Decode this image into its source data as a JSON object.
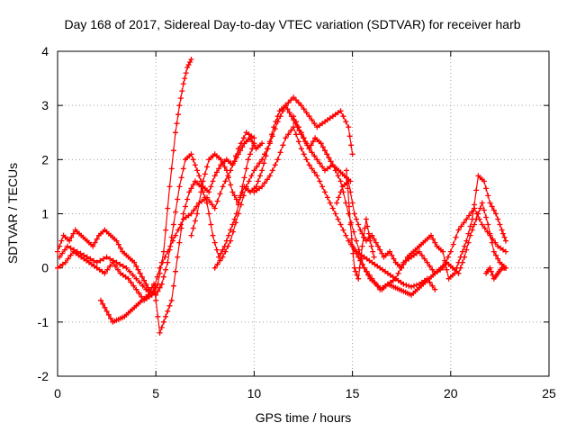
{
  "chart_data": {
    "type": "scatter",
    "title": "Day 168 of 2017, Sidereal Day-to-day VTEC variation (SDTVAR) for receiver harb",
    "xlabel": "GPS time / hours",
    "ylabel": "SDTVAR / TECUs",
    "xlim": [
      0,
      25
    ],
    "ylim": [
      -2,
      4
    ],
    "xticks": [
      0,
      5,
      10,
      15,
      20,
      25
    ],
    "yticks": [
      -2,
      -1,
      0,
      1,
      2,
      3,
      4
    ],
    "grid": true,
    "marker": "+",
    "series": [
      {
        "name": "trace-1",
        "color": "#ff0000",
        "x": [
          0.0,
          0.3,
          0.6,
          0.9,
          1.2,
          1.5,
          1.8,
          2.1,
          2.4,
          2.7,
          3.0,
          3.3,
          3.6,
          3.9,
          4.2,
          4.5,
          4.8,
          5.1,
          5.4,
          5.7,
          6.0,
          6.2,
          6.4,
          6.6,
          6.8
        ],
        "y": [
          0.3,
          0.6,
          0.5,
          0.7,
          0.6,
          0.5,
          0.4,
          0.6,
          0.7,
          0.6,
          0.5,
          0.3,
          0.2,
          0.1,
          -0.1,
          -0.3,
          -0.5,
          -0.3,
          0.3,
          1.5,
          2.5,
          3.0,
          3.4,
          3.7,
          3.85
        ]
      },
      {
        "name": "trace-2",
        "color": "#ff0000",
        "x": [
          0.1,
          0.5,
          1.0,
          1.5,
          2.0,
          2.5,
          3.0,
          3.5,
          4.0,
          4.5,
          5.0,
          5.3,
          5.6,
          5.9,
          6.2,
          6.5,
          6.8,
          7.1,
          7.4,
          7.7,
          8.0,
          8.3,
          8.6,
          8.9,
          9.2,
          9.5,
          9.8,
          10.1,
          10.4
        ],
        "y": [
          0.2,
          0.4,
          0.3,
          0.2,
          0.1,
          0.2,
          0.1,
          0.0,
          -0.2,
          -0.4,
          -0.5,
          -0.3,
          0.1,
          0.8,
          1.5,
          2.0,
          2.1,
          1.8,
          1.5,
          1.4,
          1.7,
          1.9,
          2.0,
          1.9,
          2.1,
          2.3,
          2.4,
          2.2,
          2.3
        ]
      },
      {
        "name": "trace-3",
        "color": "#ff0000",
        "x": [
          0.0,
          0.4,
          0.8,
          1.2,
          1.6,
          2.0,
          2.4,
          2.8,
          3.2,
          3.6,
          4.0,
          4.4,
          4.8,
          5.2,
          5.6,
          6.0,
          6.4,
          6.8,
          7.2,
          7.6,
          8.0,
          8.4,
          8.8,
          9.2,
          9.6,
          10.0
        ],
        "y": [
          0.0,
          0.1,
          0.3,
          0.2,
          0.1,
          0.0,
          -0.1,
          0.1,
          -0.1,
          -0.2,
          -0.4,
          -0.6,
          -0.5,
          0.0,
          0.3,
          0.6,
          0.9,
          1.0,
          1.2,
          1.3,
          1.1,
          1.5,
          1.8,
          2.2,
          2.5,
          2.4
        ]
      },
      {
        "name": "trace-4",
        "color": "#ff0000",
        "x": [
          2.2,
          2.5,
          2.8,
          3.1,
          3.4,
          3.7,
          4.0,
          4.3,
          4.6,
          4.9,
          5.2,
          5.5,
          5.8,
          6.1,
          6.4,
          6.7,
          7.0,
          7.3,
          7.6,
          7.9,
          8.2,
          8.5,
          8.8,
          9.1,
          9.4,
          9.7,
          10.0
        ],
        "y": [
          -0.6,
          -0.8,
          -1.0,
          -0.95,
          -0.9,
          -0.8,
          -0.7,
          -0.6,
          -0.5,
          -0.3,
          -1.2,
          -0.9,
          -0.6,
          0.2,
          1.0,
          1.4,
          1.6,
          1.5,
          1.2,
          0.6,
          0.2,
          0.4,
          0.7,
          1.0,
          1.5,
          2.0,
          2.3
        ]
      },
      {
        "name": "trace-5",
        "color": "#ff0000",
        "x": [
          6.8,
          7.1,
          7.4,
          7.7,
          8.0,
          8.3,
          8.6,
          8.9,
          9.2,
          9.5,
          9.8,
          10.1,
          10.4,
          10.7,
          11.0,
          11.3,
          11.6,
          11.9,
          12.2,
          12.5,
          12.8,
          13.1,
          13.4,
          13.7,
          14.0,
          14.3,
          14.6,
          14.9
        ],
        "y": [
          0.6,
          1.0,
          1.6,
          2.0,
          2.1,
          2.0,
          1.8,
          1.4,
          1.2,
          1.5,
          1.4,
          1.5,
          1.8,
          2.2,
          2.6,
          2.9,
          3.0,
          2.8,
          2.6,
          2.4,
          2.2,
          2.4,
          2.3,
          2.1,
          1.9,
          1.8,
          1.7,
          1.6
        ]
      },
      {
        "name": "trace-6",
        "color": "#ff0000",
        "x": [
          8.0,
          8.4,
          8.8,
          9.2,
          9.6,
          10.0,
          10.4,
          10.8,
          11.2,
          11.6,
          12.0,
          12.4,
          12.8,
          13.2,
          13.6,
          14.0,
          14.4,
          14.8,
          15.0
        ],
        "y": [
          0.0,
          0.2,
          0.5,
          1.0,
          1.5,
          1.8,
          2.0,
          2.3,
          2.7,
          3.0,
          3.15,
          3.0,
          2.8,
          2.6,
          2.7,
          2.8,
          2.9,
          2.6,
          2.1
        ]
      },
      {
        "name": "trace-7",
        "color": "#ff0000",
        "x": [
          10.0,
          10.4,
          10.8,
          11.2,
          11.6,
          12.0,
          12.4,
          12.8,
          13.2,
          13.6,
          14.0,
          14.4,
          14.8,
          15.2,
          15.6,
          16.0,
          16.4,
          16.8,
          17.2,
          17.6,
          18.0,
          18.4,
          18.8,
          19.2
        ],
        "y": [
          1.4,
          1.5,
          1.7,
          2.0,
          2.4,
          2.6,
          2.2,
          1.9,
          1.7,
          1.4,
          1.1,
          0.8,
          0.5,
          0.3,
          0.2,
          0.1,
          0.0,
          -0.1,
          -0.2,
          -0.3,
          -0.35,
          -0.3,
          -0.2,
          -0.4
        ]
      },
      {
        "name": "trace-8",
        "color": "#ff0000",
        "x": [
          12.0,
          12.4,
          12.8,
          13.2,
          13.6,
          14.0,
          14.4,
          14.8,
          15.2,
          15.6,
          16.0,
          16.4,
          16.8,
          17.2,
          17.6,
          18.0,
          18.4,
          18.8,
          19.2,
          19.6,
          20.0,
          20.4,
          20.8,
          21.2,
          21.6,
          22.0,
          22.4,
          22.8
        ],
        "y": [
          2.8,
          2.5,
          2.2,
          2.0,
          1.8,
          1.9,
          1.6,
          1.0,
          0.5,
          0.0,
          -0.2,
          -0.4,
          -0.3,
          -0.2,
          0.1,
          0.2,
          0.3,
          0.1,
          -0.1,
          0.0,
          0.3,
          0.7,
          0.9,
          1.1,
          0.8,
          0.6,
          0.4,
          0.3
        ]
      },
      {
        "name": "trace-9",
        "color": "#ff0000",
        "x": [
          14.2,
          14.5,
          14.8,
          15.1,
          15.4,
          15.7,
          16.0,
          16.3,
          16.6,
          16.9,
          17.2,
          17.5,
          17.8,
          18.1,
          18.4,
          18.7,
          19.0,
          19.3,
          19.6,
          19.9,
          20.2,
          20.5,
          20.8,
          21.1,
          21.4,
          21.7,
          22.0,
          22.3,
          22.6,
          22.8
        ],
        "y": [
          1.2,
          1.5,
          1.6,
          1.0,
          0.7,
          0.5,
          0.6,
          0.4,
          0.2,
          0.3,
          0.1,
          0.0,
          0.2,
          0.3,
          0.4,
          0.5,
          0.6,
          0.4,
          0.3,
          -0.2,
          -0.1,
          0.2,
          0.5,
          0.9,
          1.7,
          1.6,
          1.2,
          1.0,
          0.7,
          0.5
        ]
      },
      {
        "name": "trace-10",
        "color": "#ff0000",
        "x": [
          15.0,
          15.3,
          15.6,
          15.9,
          16.2,
          16.5,
          16.8,
          17.1,
          17.4,
          17.7,
          18.0,
          18.3,
          18.6,
          18.9,
          19.2,
          19.5,
          19.8,
          20.1,
          20.4,
          20.7,
          21.0,
          21.3,
          21.6,
          21.9,
          22.2,
          22.5,
          22.8
        ],
        "y": [
          0.4,
          0.2,
          0.0,
          -0.2,
          -0.3,
          -0.4,
          -0.3,
          -0.35,
          -0.4,
          -0.45,
          -0.5,
          -0.4,
          -0.3,
          -0.2,
          -0.1,
          0.0,
          0.1,
          0.0,
          -0.1,
          0.2,
          0.6,
          0.9,
          1.2,
          0.8,
          0.3,
          0.1,
          0.0
        ]
      },
      {
        "name": "trace-11",
        "color": "#ff0000",
        "x": [
          14.7,
          14.9,
          15.1,
          15.3,
          15.5,
          15.7,
          15.9,
          16.1
        ],
        "y": [
          1.8,
          0.8,
          0.0,
          -0.2,
          0.4,
          0.9,
          0.5,
          0.2
        ]
      },
      {
        "name": "trace-12",
        "color": "#ff0000",
        "x": [
          21.8,
          22.0,
          22.2,
          22.4,
          22.6,
          22.8
        ],
        "y": [
          -0.1,
          0.0,
          -0.2,
          -0.1,
          0.0,
          0.0
        ]
      }
    ]
  }
}
